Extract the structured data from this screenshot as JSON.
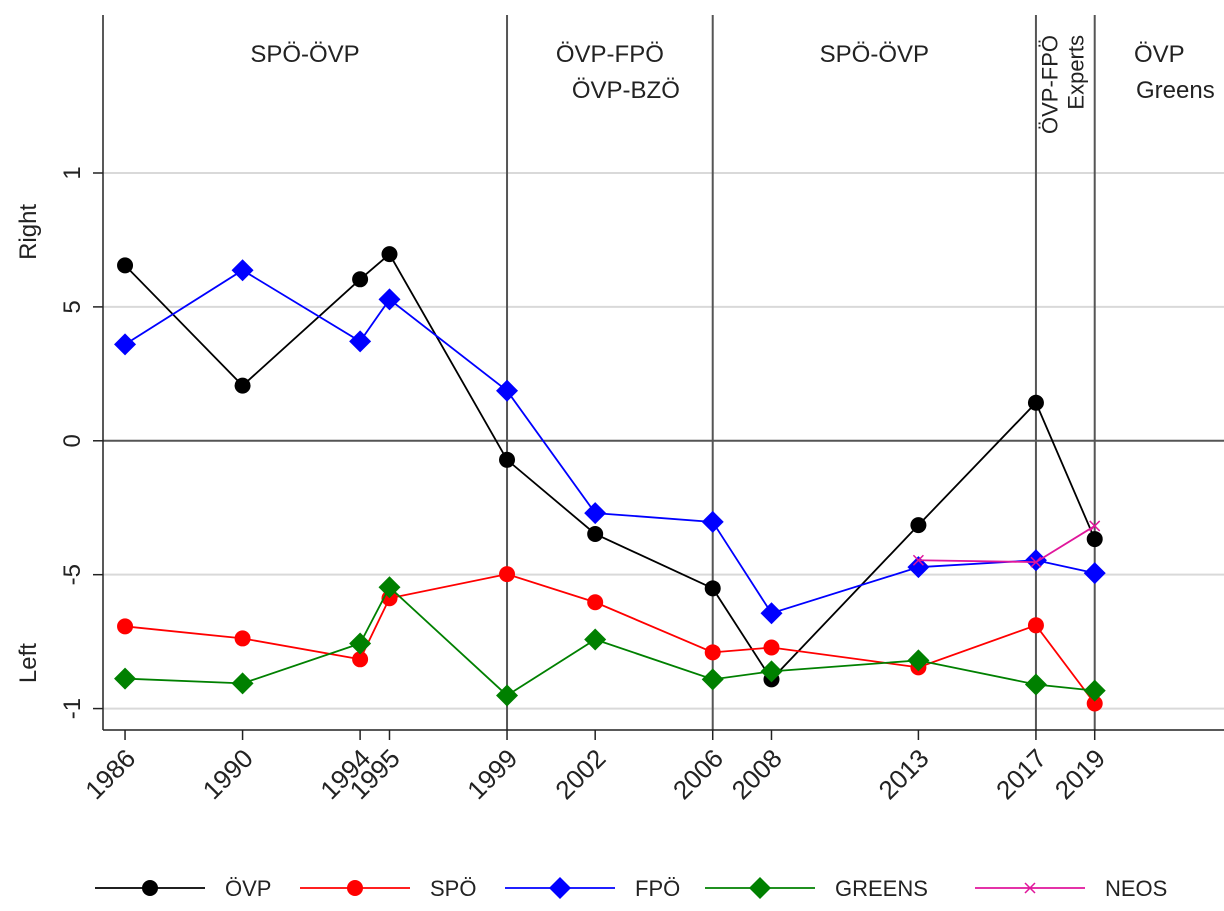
{
  "chart_data": {
    "type": "line",
    "y_label_top": "Right",
    "y_label_bottom": "Left",
    "x": [
      1986,
      1990,
      1994,
      1995,
      1999,
      2002,
      2006,
      2008,
      2013,
      2017,
      2019
    ],
    "series": [
      {
        "name": "ÖVP",
        "color": "#000000",
        "marker": "circle",
        "values": [
          0.655,
          0.206,
          0.603,
          0.697,
          -0.071,
          -0.348,
          -0.551,
          -0.891,
          -0.315,
          0.142,
          -0.367
        ]
      },
      {
        "name": "SPÖ",
        "color": "#ff0000",
        "marker": "circle",
        "values": [
          -0.693,
          -0.738,
          -0.816,
          -0.588,
          -0.498,
          -0.603,
          -0.79,
          -0.772,
          -0.846,
          -0.689,
          -0.981
        ]
      },
      {
        "name": "FPÖ",
        "color": "#0000ff",
        "marker": "diamond",
        "values": [
          0.36,
          0.637,
          0.371,
          0.528,
          0.187,
          -0.27,
          -0.303,
          -0.644,
          -0.472,
          -0.446,
          -0.494
        ]
      },
      {
        "name": "GREENS",
        "color": "#008000",
        "marker": "diamond",
        "values": [
          -0.888,
          -0.906,
          -0.757,
          -0.547,
          -0.951,
          -0.742,
          -0.891,
          -0.861,
          -0.82,
          -0.91,
          -0.933
        ]
      },
      {
        "name": "NEOS",
        "color": "#e0169b",
        "marker": "x",
        "values": [
          null,
          null,
          null,
          null,
          null,
          null,
          null,
          null,
          -0.446,
          -0.453,
          -0.318
        ]
      }
    ],
    "vlines": [
      1999,
      2006,
      2017,
      2019
    ],
    "periods": [
      {
        "lines": [
          "SPÖ-ÖVP"
        ]
      },
      {
        "lines": [
          "ÖVP-FPÖ",
          "ÖVP-BZÖ"
        ]
      },
      {
        "lines": [
          "SPÖ-ÖVP"
        ]
      },
      {
        "lines": [
          "ÖVP-FPÖ",
          "Experts"
        ],
        "rotated": true
      },
      {
        "lines": [
          "ÖVP",
          "Greens"
        ]
      }
    ],
    "xlim": [
      1985.25,
      2023.4
    ],
    "xticks": [
      1986,
      1990,
      1994,
      1995,
      1999,
      2002,
      2006,
      2008,
      2013,
      2017,
      2019
    ],
    "ylim": [
      -1.08,
      1.59
    ],
    "yticks": [
      -1,
      {
        "value": -0.5,
        "label": "-5"
      },
      0,
      {
        "value": 0.5,
        "label": "5"
      },
      1
    ],
    "grid": true,
    "legend": "bottom"
  }
}
